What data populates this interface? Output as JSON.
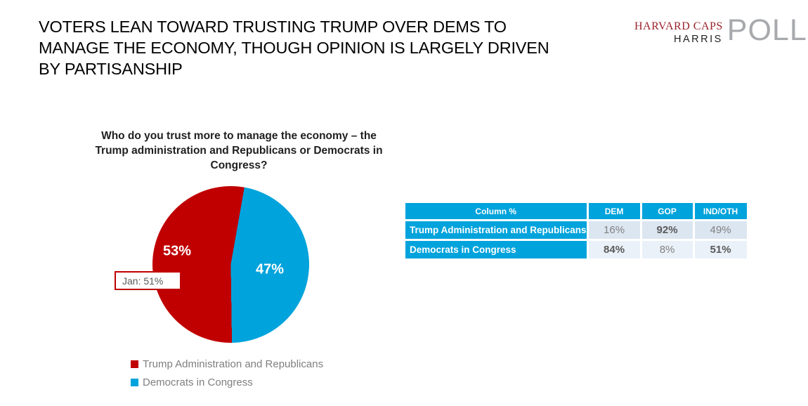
{
  "slide": {
    "title_lines": [
      "VOTERS LEAN TOWARD TRUSTING TRUMP OVER DEMS TO",
      "MANAGE THE ECONOMY, THOUGH OPINION IS LARGELY DRIVEN",
      "BY PARTISANSHIP"
    ]
  },
  "logo": {
    "brand_line1": "HARVARD CAPS",
    "brand_line2": "HARRIS",
    "brand_word": "POLL"
  },
  "colors": {
    "accent_red": "#C00000",
    "accent_blue": "#00A3DC",
    "table_row1_bg": "#DCE6F1",
    "table_row2_bg": "#EAF1F8",
    "value_text": "#808080",
    "value_text_bold": "#595959",
    "legend_text": "#7F7F7F",
    "logo_red": "#9A232B",
    "logo_gray": "#A7A9AC",
    "annotation_text": "#595959"
  },
  "chart": {
    "title_lines": [
      "Who do you trust more to manage the economy – the",
      "Trump administration and Republicans or Democrats in",
      "Congress?"
    ]
  },
  "chart_data": {
    "type": "pie",
    "title": "Who do you trust more to manage the economy – the Trump administration and Republicans or Democrats in Congress?",
    "slices": [
      {
        "label": "Trump Administration and Republicans",
        "value": 53,
        "display": "53%",
        "color": "#C00000"
      },
      {
        "label": "Democrats in Congress",
        "value": 47,
        "display": "47%",
        "color": "#00A3DC"
      }
    ],
    "start_angle_deg": 10,
    "annotation": "Jan: 51%",
    "legend_position": "bottom-left"
  },
  "table": {
    "header": [
      "Column %",
      "DEM",
      "GOP",
      "IND/OTH"
    ],
    "rows": [
      {
        "label": "Trump Administration and Republicans",
        "cells": [
          {
            "value": "16%",
            "bold": false
          },
          {
            "value": "92%",
            "bold": true
          },
          {
            "value": "49%",
            "bold": false
          }
        ]
      },
      {
        "label": "Democrats in Congress",
        "cells": [
          {
            "value": "84%",
            "bold": true
          },
          {
            "value": "8%",
            "bold": false
          },
          {
            "value": "51%",
            "bold": true
          }
        ]
      }
    ]
  }
}
